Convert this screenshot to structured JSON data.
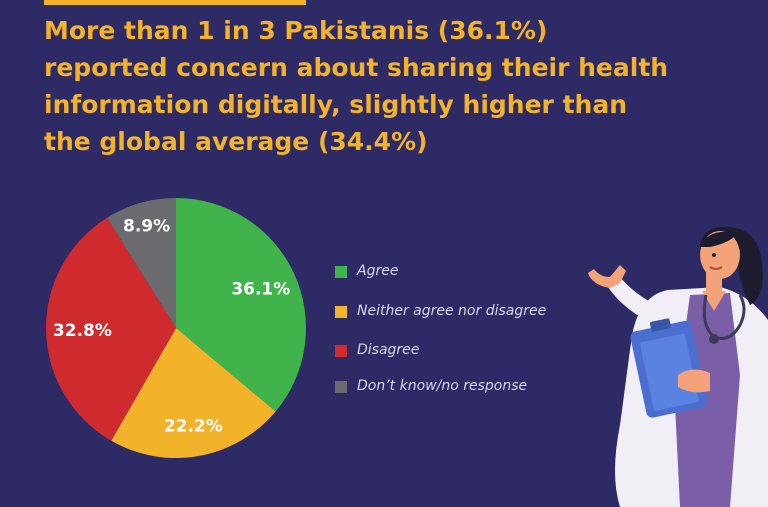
{
  "title_lines": [
    "More than 1 in 3 Pakistanis (36.1%)",
    "reported concern about sharing their health",
    "information digitally, slightly higher than",
    "the global average (34.4%)"
  ],
  "chart_data": {
    "type": "pie",
    "title": "More than 1 in 3 Pakistanis (36.1%) reported concern about sharing their health information digitally, slightly higher than the global average (34.4%)",
    "slices": [
      {
        "label": "Agree",
        "value": 36.1,
        "display": "36.1%",
        "color": "#40b44a"
      },
      {
        "label": "Neither agree nor disagree",
        "value": 22.2,
        "display": "22.2%",
        "color": "#f2b22a"
      },
      {
        "label": "Disagree",
        "value": 32.8,
        "display": "32.8%",
        "color": "#cf2a2e"
      },
      {
        "label": "Don’t know/no response",
        "value": 8.9,
        "display": "8.9%",
        "color": "#6b6b6f"
      }
    ],
    "start_angle": "12 o'clock",
    "direction": "clockwise",
    "legend_position": "right"
  },
  "illustration": {
    "name": "doctor-with-clipboard-illustration"
  },
  "colors": {
    "background": "#2d2a66",
    "title": "#f2b22a",
    "legend_text": "#d9d8ea"
  }
}
